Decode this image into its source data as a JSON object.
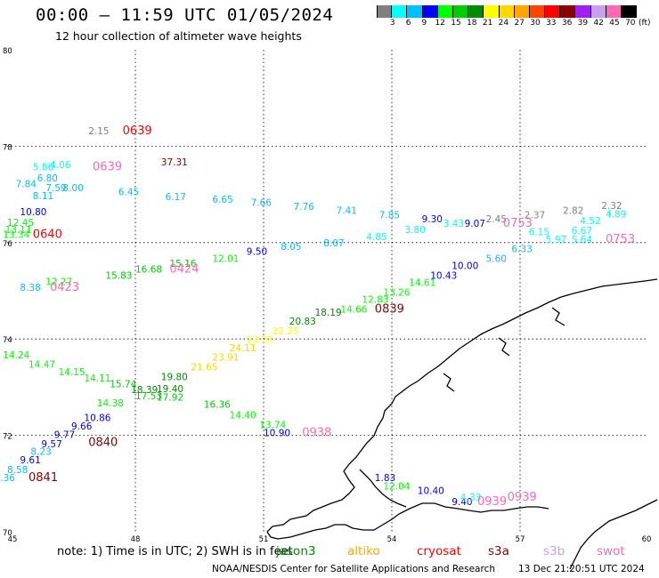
{
  "title": "00:00 — 11:59 UTC 01/05/2024",
  "subtitle": "12 hour collection of altimeter wave heights",
  "colorbar": {
    "unit": "(ft)",
    "colors": [
      "#808080",
      "#00ffff",
      "#00bfff",
      "#0000ff",
      "#00ff00",
      "#00cd00",
      "#008b00",
      "#ffff00",
      "#ffd700",
      "#ffa500",
      "#ff4500",
      "#ff0000",
      "#8b0000",
      "#a020f0",
      "#c8a0f0",
      "#ff69b4",
      "#000000"
    ],
    "labels": [
      "3",
      "6",
      "9",
      "12",
      "15",
      "18",
      "21",
      "24",
      "27",
      "30",
      "33",
      "36",
      "39",
      "42",
      "45",
      "70"
    ]
  },
  "axes": {
    "lat_ticks": [
      "80",
      "78",
      "76",
      "74",
      "72",
      "70"
    ],
    "lon_ticks": [
      "45",
      "48",
      "51",
      "54",
      "57",
      "60"
    ]
  },
  "observations": [
    {
      "text": "2.15",
      "lon": 46.9,
      "lat": 78.25,
      "color": "#808080"
    },
    {
      "text": "0639",
      "lon": 47.7,
      "lat": 78.25,
      "color": "#ff0000"
    },
    {
      "text": "37.31",
      "lon": 48.6,
      "lat": 77.6,
      "color": "#8b0000"
    },
    {
      "text": "4.06",
      "lon": 46.0,
      "lat": 77.55,
      "color": "#00ffff"
    },
    {
      "text": "5.86",
      "lon": 45.6,
      "lat": 77.5,
      "color": "#00ffff"
    },
    {
      "text": "0639",
      "lon": 47.0,
      "lat": 77.5,
      "color": "#ff69b4"
    },
    {
      "text": "6.80",
      "lon": 45.7,
      "lat": 77.27,
      "color": "#00bfff"
    },
    {
      "text": "7.84",
      "lon": 45.2,
      "lat": 77.15,
      "color": "#00bfff"
    },
    {
      "text": "7.59",
      "lon": 45.9,
      "lat": 77.07,
      "color": "#00bfff"
    },
    {
      "text": "8.00",
      "lon": 46.3,
      "lat": 77.07,
      "color": "#00bfff"
    },
    {
      "text": "8.11",
      "lon": 45.6,
      "lat": 76.9,
      "color": "#00bfff"
    },
    {
      "text": "6.45",
      "lon": 47.6,
      "lat": 76.98,
      "color": "#00bfff"
    },
    {
      "text": "6.17",
      "lon": 48.7,
      "lat": 76.88,
      "color": "#00bfff"
    },
    {
      "text": "6.65",
      "lon": 49.8,
      "lat": 76.83,
      "color": "#00bfff"
    },
    {
      "text": "7.66",
      "lon": 50.7,
      "lat": 76.76,
      "color": "#00bfff"
    },
    {
      "text": "7.76",
      "lon": 51.7,
      "lat": 76.68,
      "color": "#00bfff"
    },
    {
      "text": "7.41",
      "lon": 52.7,
      "lat": 76.6,
      "color": "#00bfff"
    },
    {
      "text": "7.85",
      "lon": 53.7,
      "lat": 76.5,
      "color": "#00bfff"
    },
    {
      "text": "9.30",
      "lon": 54.7,
      "lat": 76.42,
      "color": "#0000ff"
    },
    {
      "text": "3.43",
      "lon": 55.2,
      "lat": 76.33,
      "color": "#00ffff"
    },
    {
      "text": "9.07",
      "lon": 55.7,
      "lat": 76.33,
      "color": "#0000ff"
    },
    {
      "text": "2.45",
      "lon": 56.2,
      "lat": 76.42,
      "color": "#808080"
    },
    {
      "text": "0753",
      "lon": 56.6,
      "lat": 76.33,
      "color": "#ff69b4"
    },
    {
      "text": "2.37",
      "lon": 57.1,
      "lat": 76.5,
      "color": "#808080"
    },
    {
      "text": "2.82",
      "lon": 58.0,
      "lat": 76.6,
      "color": "#808080"
    },
    {
      "text": "2.32",
      "lon": 58.9,
      "lat": 76.7,
      "color": "#808080"
    },
    {
      "text": "4.52",
      "lon": 58.4,
      "lat": 76.38,
      "color": "#00ffff"
    },
    {
      "text": "4.89",
      "lon": 59.0,
      "lat": 76.52,
      "color": "#00ffff"
    },
    {
      "text": "10.80",
      "lon": 45.3,
      "lat": 76.57,
      "color": "#0000ff"
    },
    {
      "text": "12.45",
      "lon": 45.0,
      "lat": 76.35,
      "color": "#00ff00"
    },
    {
      "text": "13.11",
      "lon": 44.95,
      "lat": 76.2,
      "color": "#00ff00"
    },
    {
      "text": "13.34",
      "lon": 44.9,
      "lat": 76.1,
      "color": "#00ff00"
    },
    {
      "text": "0640",
      "lon": 45.6,
      "lat": 76.1,
      "color": "#ff0000"
    },
    {
      "text": "8.05",
      "lon": 51.4,
      "lat": 75.85,
      "color": "#00bfff"
    },
    {
      "text": "8.07",
      "lon": 52.4,
      "lat": 75.92,
      "color": "#00bfff"
    },
    {
      "text": "4.85",
      "lon": 53.4,
      "lat": 76.05,
      "color": "#00ffff"
    },
    {
      "text": "3.80",
      "lon": 54.3,
      "lat": 76.2,
      "color": "#00ffff"
    },
    {
      "text": "6.15",
      "lon": 57.2,
      "lat": 76.15,
      "color": "#00ffff"
    },
    {
      "text": "5.97",
      "lon": 57.6,
      "lat": 76.0,
      "color": "#00ffff"
    },
    {
      "text": "6.67",
      "lon": 58.2,
      "lat": 76.18,
      "color": "#00ffff"
    },
    {
      "text": "5.64",
      "lon": 58.2,
      "lat": 76.0,
      "color": "#00ffff"
    },
    {
      "text": "0753",
      "lon": 59.0,
      "lat": 76.0,
      "color": "#ff69b4"
    },
    {
      "text": "6.33",
      "lon": 56.8,
      "lat": 75.8,
      "color": "#00bfff"
    },
    {
      "text": "5.60",
      "lon": 56.2,
      "lat": 75.6,
      "color": "#00bfff"
    },
    {
      "text": "9.50",
      "lon": 50.6,
      "lat": 75.75,
      "color": "#0000ff"
    },
    {
      "text": "10.00",
      "lon": 55.4,
      "lat": 75.45,
      "color": "#0000ff"
    },
    {
      "text": "10.43",
      "lon": 54.9,
      "lat": 75.25,
      "color": "#0000ff"
    },
    {
      "text": "12.01",
      "lon": 49.8,
      "lat": 75.6,
      "color": "#00ff00"
    },
    {
      "text": "15.16",
      "lon": 48.8,
      "lat": 75.5,
      "color": "#00cd00"
    },
    {
      "text": "16.68",
      "lon": 48.0,
      "lat": 75.38,
      "color": "#00cd00"
    },
    {
      "text": "0424",
      "lon": 48.8,
      "lat": 75.38,
      "color": "#ff69b4"
    },
    {
      "text": "15.83",
      "lon": 47.3,
      "lat": 75.25,
      "color": "#00cd00"
    },
    {
      "text": "12.27",
      "lon": 45.9,
      "lat": 75.12,
      "color": "#00ff00"
    },
    {
      "text": "8.38",
      "lon": 45.3,
      "lat": 75.0,
      "color": "#00bfff"
    },
    {
      "text": "0423",
      "lon": 46.0,
      "lat": 75.0,
      "color": "#ff69b4"
    },
    {
      "text": "14.61",
      "lon": 54.4,
      "lat": 75.1,
      "color": "#00ff00"
    },
    {
      "text": "13.26",
      "lon": 53.8,
      "lat": 74.9,
      "color": "#00ff00"
    },
    {
      "text": "12.83",
      "lon": 53.3,
      "lat": 74.75,
      "color": "#00ff00"
    },
    {
      "text": "14.66",
      "lon": 52.8,
      "lat": 74.55,
      "color": "#00ff00"
    },
    {
      "text": "0839",
      "lon": 53.6,
      "lat": 74.55,
      "color": "#8b0000"
    },
    {
      "text": "18.19",
      "lon": 52.2,
      "lat": 74.48,
      "color": "#008b00"
    },
    {
      "text": "20.83",
      "lon": 51.6,
      "lat": 74.3,
      "color": "#008b00"
    },
    {
      "text": "22.25",
      "lon": 51.2,
      "lat": 74.1,
      "color": "#ffff00"
    },
    {
      "text": "23.28",
      "lon": 50.6,
      "lat": 73.92,
      "color": "#ffff00"
    },
    {
      "text": "24.11",
      "lon": 50.2,
      "lat": 73.75,
      "color": "#ffd700"
    },
    {
      "text": "23.91",
      "lon": 49.8,
      "lat": 73.55,
      "color": "#ffd700"
    },
    {
      "text": "21.65",
      "lon": 49.3,
      "lat": 73.35,
      "color": "#ffd700"
    },
    {
      "text": "19.80",
      "lon": 48.6,
      "lat": 73.15,
      "color": "#008b00"
    },
    {
      "text": "14.24",
      "lon": 44.9,
      "lat": 73.6,
      "color": "#00ff00"
    },
    {
      "text": "14.47",
      "lon": 45.5,
      "lat": 73.4,
      "color": "#00ff00"
    },
    {
      "text": "14.15",
      "lon": 46.2,
      "lat": 73.25,
      "color": "#00ff00"
    },
    {
      "text": "14.11",
      "lon": 46.8,
      "lat": 73.12,
      "color": "#00ff00"
    },
    {
      "text": "15.74",
      "lon": 47.4,
      "lat": 73.0,
      "color": "#00cd00"
    },
    {
      "text": "18.39",
      "lon": 47.9,
      "lat": 72.88,
      "color": "#008b00"
    },
    {
      "text": "19.40",
      "lon": 48.5,
      "lat": 72.9,
      "color": "#008b00"
    },
    {
      "text": "17.53",
      "lon": 48.0,
      "lat": 72.75,
      "color": "#00cd00"
    },
    {
      "text": "17.92",
      "lon": 48.5,
      "lat": 72.72,
      "color": "#00cd00"
    },
    {
      "text": "14.38",
      "lon": 47.1,
      "lat": 72.6,
      "color": "#00ff00"
    },
    {
      "text": "16.36",
      "lon": 49.6,
      "lat": 72.57,
      "color": "#00cd00"
    },
    {
      "text": "14.40",
      "lon": 50.2,
      "lat": 72.35,
      "color": "#00ff00"
    },
    {
      "text": "13.74",
      "lon": 50.9,
      "lat": 72.15,
      "color": "#00ff00"
    },
    {
      "text": "10.86",
      "lon": 46.8,
      "lat": 72.3,
      "color": "#0000ff"
    },
    {
      "text": "9.66",
      "lon": 46.5,
      "lat": 72.12,
      "color": "#0000ff"
    },
    {
      "text": "9.77",
      "lon": 46.1,
      "lat": 71.95,
      "color": "#0000ff"
    },
    {
      "text": "0840",
      "lon": 46.9,
      "lat": 71.78,
      "color": "#8b0000"
    },
    {
      "text": "9.57",
      "lon": 45.8,
      "lat": 71.75,
      "color": "#0000ff"
    },
    {
      "text": "8.23",
      "lon": 45.55,
      "lat": 71.6,
      "color": "#00bfff"
    },
    {
      "text": "9.61",
      "lon": 45.3,
      "lat": 71.42,
      "color": "#0000ff"
    },
    {
      "text": "8.58",
      "lon": 45.0,
      "lat": 71.22,
      "color": "#00bfff"
    },
    {
      "text": "8.36",
      "lon": 44.7,
      "lat": 71.05,
      "color": "#00bfff"
    },
    {
      "text": "0841",
      "lon": 45.5,
      "lat": 71.05,
      "color": "#8b0000"
    },
    {
      "text": "10.90",
      "lon": 51.0,
      "lat": 71.98,
      "color": "#0000ff"
    },
    {
      "text": "0938",
      "lon": 51.9,
      "lat": 71.98,
      "color": "#ff69b4"
    },
    {
      "text": "1.83",
      "lon": 53.6,
      "lat": 71.05,
      "color": "#0000ff"
    },
    {
      "text": "12.04",
      "lon": 53.8,
      "lat": 70.88,
      "color": "#00ff00"
    },
    {
      "text": "10.40",
      "lon": 54.6,
      "lat": 70.78,
      "color": "#0000ff"
    },
    {
      "text": "9.40",
      "lon": 55.4,
      "lat": 70.55,
      "color": "#0000ff"
    },
    {
      "text": "4.33",
      "lon": 55.6,
      "lat": 70.65,
      "color": "#00ffff"
    },
    {
      "text": "0939",
      "lon": 56.0,
      "lat": 70.55,
      "color": "#ff69b4"
    },
    {
      "text": "0939",
      "lon": 56.7,
      "lat": 70.65,
      "color": "#ff69b4"
    }
  ],
  "footer": {
    "note": "note:  1) Time is in UTC; 2) SWH is in feet",
    "satellites": [
      {
        "label": "jason3",
        "color": "#008b00"
      },
      {
        "label": "altiko",
        "color": "#ffa500"
      },
      {
        "label": "cryosat",
        "color": "#ff0000"
      },
      {
        "label": "s3a",
        "color": "#8b0000"
      },
      {
        "label": "s3b",
        "color": "#c8a0f0"
      },
      {
        "label": "swot",
        "color": "#ff69b4"
      }
    ],
    "credit": "NOAA/NESDIS Center for Satellite Applications and Research",
    "timestamp": "13 Dec 21:20:51 UTC 2024"
  }
}
